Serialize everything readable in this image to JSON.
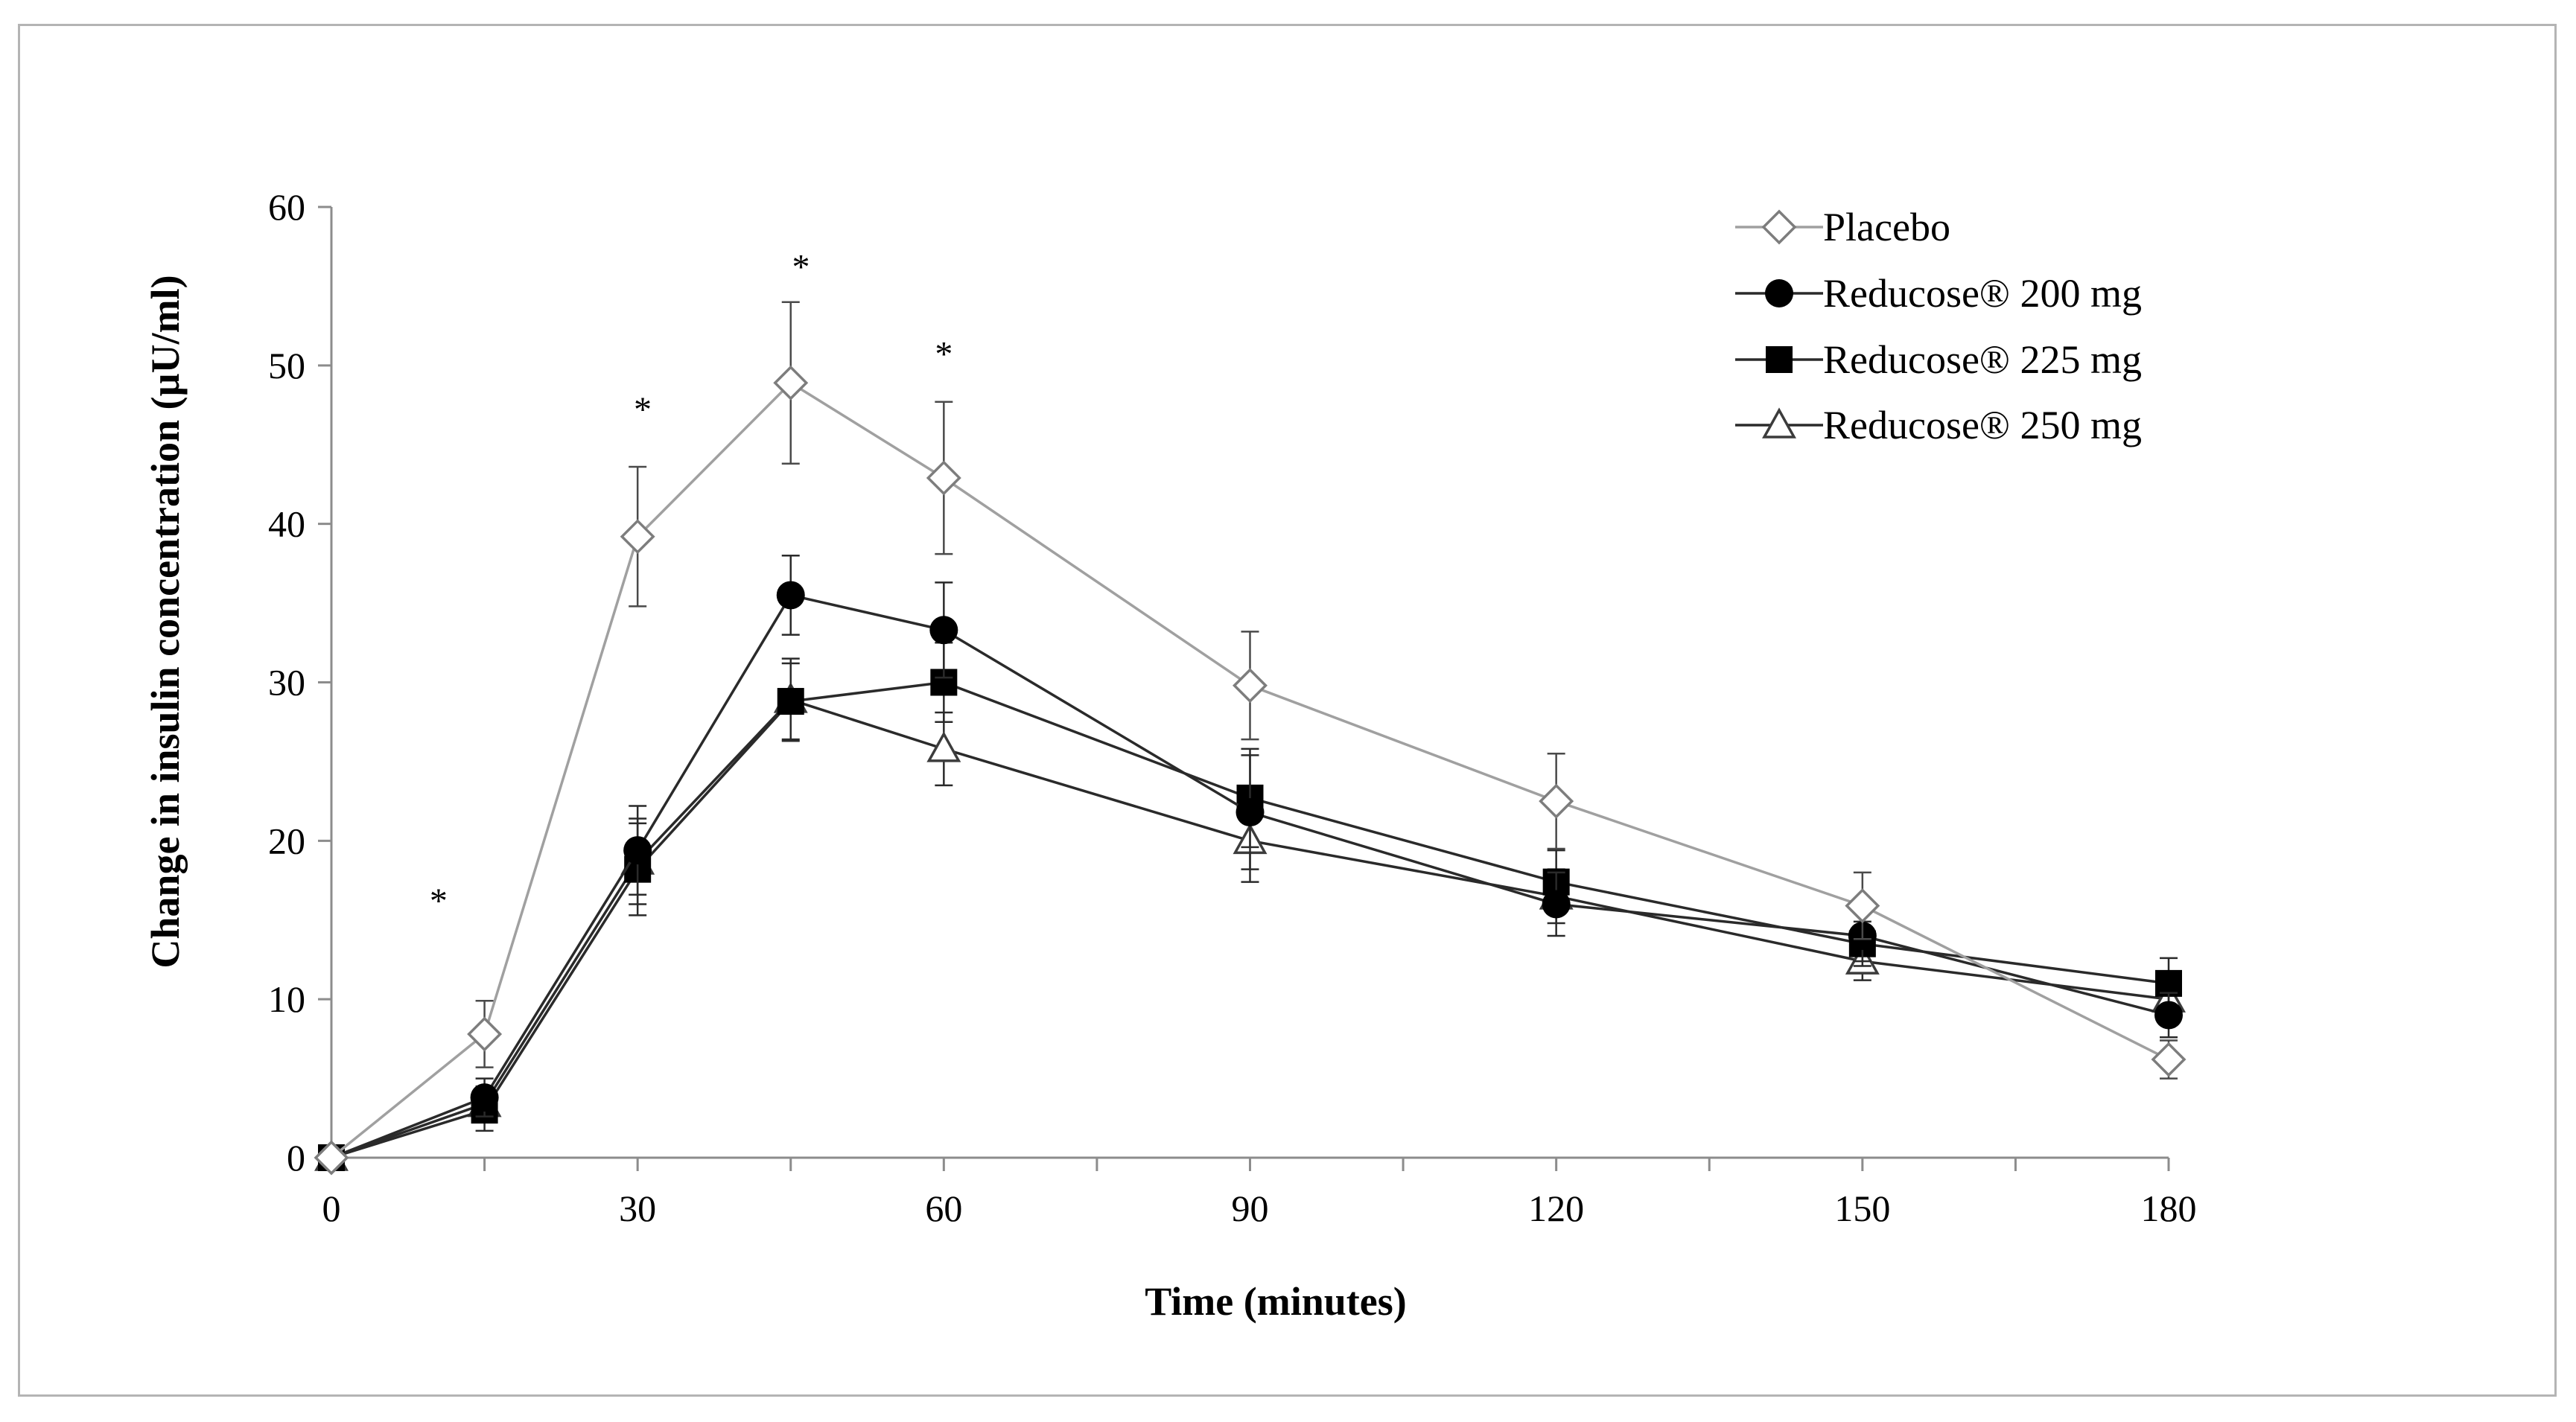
{
  "chart_data": {
    "type": "line",
    "title": "",
    "xlabel": "Time (minutes)",
    "ylabel": "Change in insulin concentration (µU/ml)",
    "xlim": [
      0,
      180
    ],
    "ylim": [
      0,
      60
    ],
    "x_ticks": [
      0,
      30,
      60,
      90,
      120,
      150,
      180
    ],
    "x_minor_ticks": [
      15,
      45,
      75,
      105,
      135,
      165
    ],
    "y_ticks": [
      0,
      10,
      20,
      30,
      40,
      50,
      60
    ],
    "grid": false,
    "legend_position": "top-right",
    "x": [
      0,
      15,
      30,
      45,
      60,
      90,
      120,
      150,
      180
    ],
    "series": [
      {
        "name": "Placebo",
        "marker": "diamond-open",
        "color": "#a0a0a0",
        "values": [
          0,
          7.8,
          39.2,
          48.9,
          42.9,
          29.8,
          22.5,
          15.9,
          6.2
        ],
        "errors": [
          0,
          2.1,
          4.4,
          5.1,
          4.8,
          3.4,
          3.0,
          2.1,
          1.2
        ]
      },
      {
        "name": "Reducose® 200 mg",
        "marker": "circle-filled",
        "color": "#000000",
        "values": [
          0,
          3.8,
          19.4,
          35.5,
          33.3,
          21.8,
          16.0,
          14.0,
          9.0
        ],
        "errors": [
          0,
          1.2,
          2.8,
          2.5,
          3.0,
          3.6,
          2.0,
          1.6,
          1.4
        ]
      },
      {
        "name": "Reducose® 225 mg",
        "marker": "square-filled",
        "color": "#000000",
        "values": [
          0,
          3.0,
          18.2,
          28.8,
          30.0,
          22.7,
          17.4,
          13.5,
          11.0
        ],
        "errors": [
          0,
          1.3,
          2.9,
          2.4,
          2.5,
          3.1,
          2.0,
          1.4,
          1.6
        ]
      },
      {
        "name": "Reducose® 250 mg",
        "marker": "triangle-open",
        "color": "#000000",
        "values": [
          0,
          3.4,
          18.7,
          28.9,
          25.8,
          20.0,
          16.5,
          12.4,
          10.0
        ],
        "errors": [
          0,
          1.1,
          2.7,
          2.6,
          2.3,
          2.6,
          1.7,
          1.2,
          1.3
        ]
      }
    ],
    "annotations": [
      {
        "text": "*",
        "x": 10.5,
        "y": 16.5
      },
      {
        "text": "*",
        "x": 30.5,
        "y": 47.5
      },
      {
        "text": "*",
        "x": 46,
        "y": 56.5
      },
      {
        "text": "*",
        "x": 60,
        "y": 51.0
      }
    ]
  }
}
